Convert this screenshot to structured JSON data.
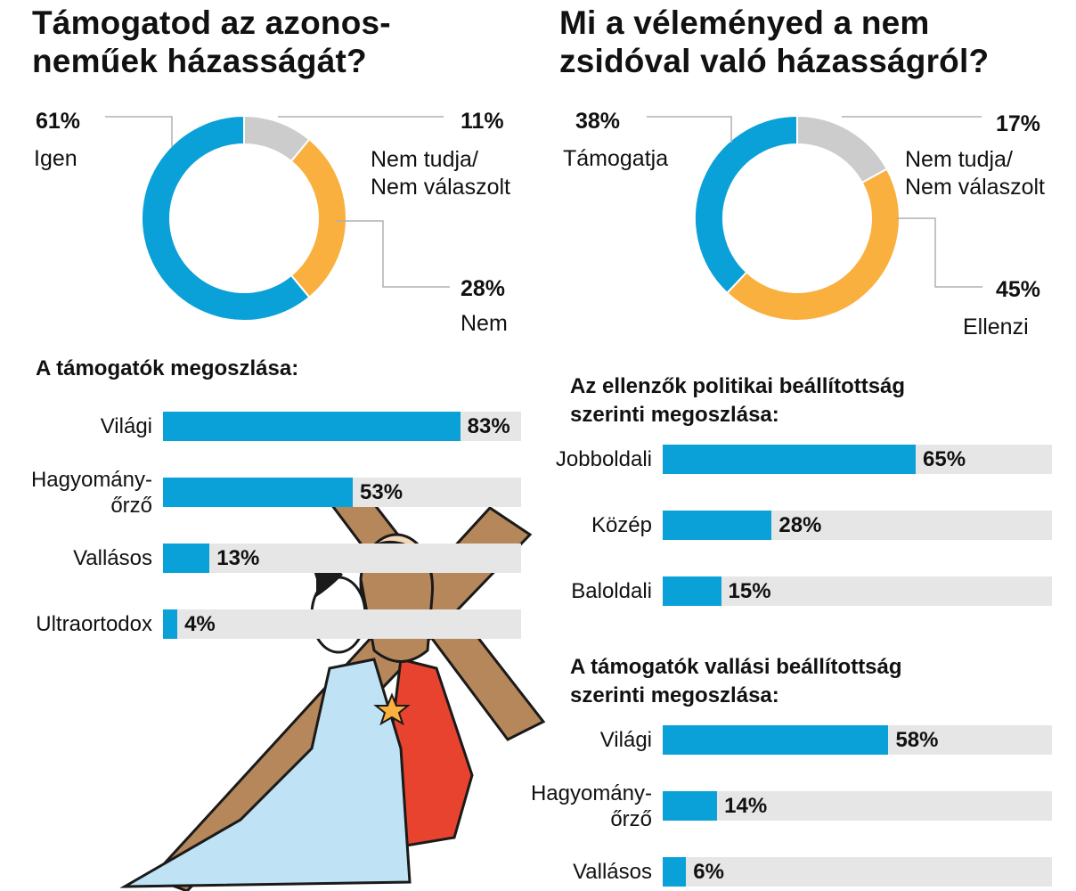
{
  "colors": {
    "blue": "#0aa0d8",
    "orange": "#f9b03e",
    "grey": "#cccccc",
    "track": "#e6e6e6",
    "leader": "#b0b0b0"
  },
  "left": {
    "title": "Támogatod az azonos-\nneműek házasságát?",
    "slices": [
      {
        "pct_text": "61%",
        "label": "Igen"
      },
      {
        "pct_text": "11%",
        "label": "Nem tudja/\nNem válaszolt"
      },
      {
        "pct_text": "28%",
        "label": "Nem"
      }
    ],
    "bars_title": "A támogatók megoszlása:",
    "bars": [
      {
        "label": "Világi",
        "pct_text": "83%"
      },
      {
        "label": "Hagyomány-\nőrző",
        "pct_text": "53%"
      },
      {
        "label": "Vallásos",
        "pct_text": "13%"
      },
      {
        "label": "Ultraortodox",
        "pct_text": "4%"
      }
    ]
  },
  "right": {
    "title": "Mi a véleményed a nem\nzsidóval való házasságról?",
    "slices": [
      {
        "pct_text": "38%",
        "label": "Támogatja"
      },
      {
        "pct_text": "17%",
        "label": "Nem tudja/\nNem válaszolt"
      },
      {
        "pct_text": "45%",
        "label": "Ellenzi"
      }
    ],
    "bars1_title": "Az ellenzők politikai beállítottság\nszerinti megoszlása:",
    "bars1": [
      {
        "label": "Jobboldali",
        "pct_text": "65%"
      },
      {
        "label": "Közép",
        "pct_text": "28%"
      },
      {
        "label": "Baloldali",
        "pct_text": "15%"
      }
    ],
    "bars2_title": "A támogatók vallási beállítottság\nszerinti megoszlása:",
    "bars2": [
      {
        "label": "Világi",
        "pct_text": "58%"
      },
      {
        "label": "Hagyomány-\nőrző",
        "pct_text": "14%"
      },
      {
        "label": "Vallásos",
        "pct_text": "6%"
      }
    ]
  },
  "illustration": {
    "name": "woman-embracing-man-with-cross"
  },
  "chart_data": [
    {
      "type": "pie",
      "title": "Támogatod az azonos-neműek házasságát?",
      "categories": [
        "Igen",
        "Nem tudja/Nem válaszolt",
        "Nem"
      ],
      "values": [
        61,
        11,
        28
      ],
      "colors": [
        "#0aa0d8",
        "#cccccc",
        "#f9b03e"
      ]
    },
    {
      "type": "bar",
      "title": "A támogatók megoszlása:",
      "categories": [
        "Világi",
        "Hagyomány-őrző",
        "Vallásos",
        "Ultraortodox"
      ],
      "values": [
        83,
        53,
        13,
        4
      ],
      "ylim": [
        0,
        100
      ]
    },
    {
      "type": "pie",
      "title": "Mi a véleményed a nem zsidóval való házasságról?",
      "categories": [
        "Támogatja",
        "Nem tudja/Nem válaszolt",
        "Ellenzi"
      ],
      "values": [
        38,
        17,
        45
      ],
      "colors": [
        "#0aa0d8",
        "#cccccc",
        "#f9b03e"
      ]
    },
    {
      "type": "bar",
      "title": "Az ellenzők politikai beállítottság szerinti megoszlása:",
      "categories": [
        "Jobboldali",
        "Közép",
        "Baloldali"
      ],
      "values": [
        65,
        28,
        15
      ],
      "ylim": [
        0,
        100
      ]
    },
    {
      "type": "bar",
      "title": "A támogatók vallási beállítottság szerinti megoszlása:",
      "categories": [
        "Világi",
        "Hagyomány-őrző",
        "Vallásos"
      ],
      "values": [
        58,
        14,
        6
      ],
      "ylim": [
        0,
        100
      ]
    }
  ]
}
